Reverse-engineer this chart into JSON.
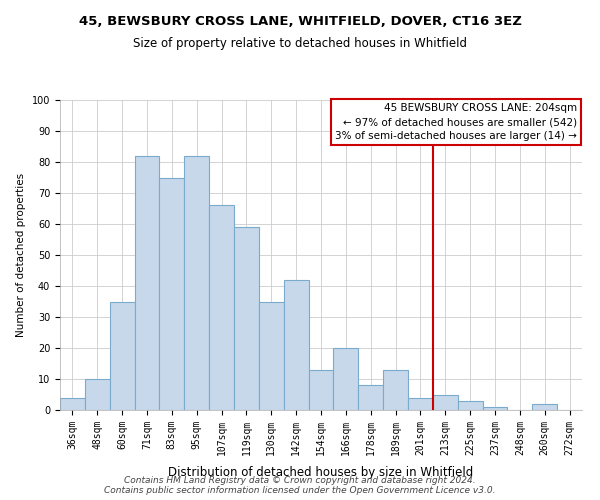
{
  "title": "45, BEWSBURY CROSS LANE, WHITFIELD, DOVER, CT16 3EZ",
  "subtitle": "Size of property relative to detached houses in Whitfield",
  "xlabel": "Distribution of detached houses by size in Whitfield",
  "ylabel": "Number of detached properties",
  "bar_labels": [
    "36sqm",
    "48sqm",
    "60sqm",
    "71sqm",
    "83sqm",
    "95sqm",
    "107sqm",
    "119sqm",
    "130sqm",
    "142sqm",
    "154sqm",
    "166sqm",
    "178sqm",
    "189sqm",
    "201sqm",
    "213sqm",
    "225sqm",
    "237sqm",
    "248sqm",
    "260sqm",
    "272sqm"
  ],
  "bar_heights": [
    4,
    10,
    35,
    82,
    75,
    82,
    66,
    59,
    35,
    42,
    13,
    20,
    8,
    13,
    4,
    5,
    3,
    1,
    0,
    2,
    0
  ],
  "bar_color": "#c8d8eb",
  "bar_edge_color": "#7aabcc",
  "ylim": [
    0,
    100
  ],
  "red_line_x": 14.5,
  "red_line_color": "#cc0000",
  "annotation_text": "45 BEWSBURY CROSS LANE: 204sqm\n← 97% of detached houses are smaller (542)\n3% of semi-detached houses are larger (14) →",
  "annotation_box_color": "#ffffff",
  "annotation_box_edge": "#cc0000",
  "footer_line1": "Contains HM Land Registry data © Crown copyright and database right 2024.",
  "footer_line2": "Contains public sector information licensed under the Open Government Licence v3.0.",
  "title_fontsize": 9.5,
  "subtitle_fontsize": 8.5,
  "xlabel_fontsize": 8.5,
  "ylabel_fontsize": 7.5,
  "tick_fontsize": 7.0,
  "annot_fontsize": 7.5,
  "footer_fontsize": 6.5
}
